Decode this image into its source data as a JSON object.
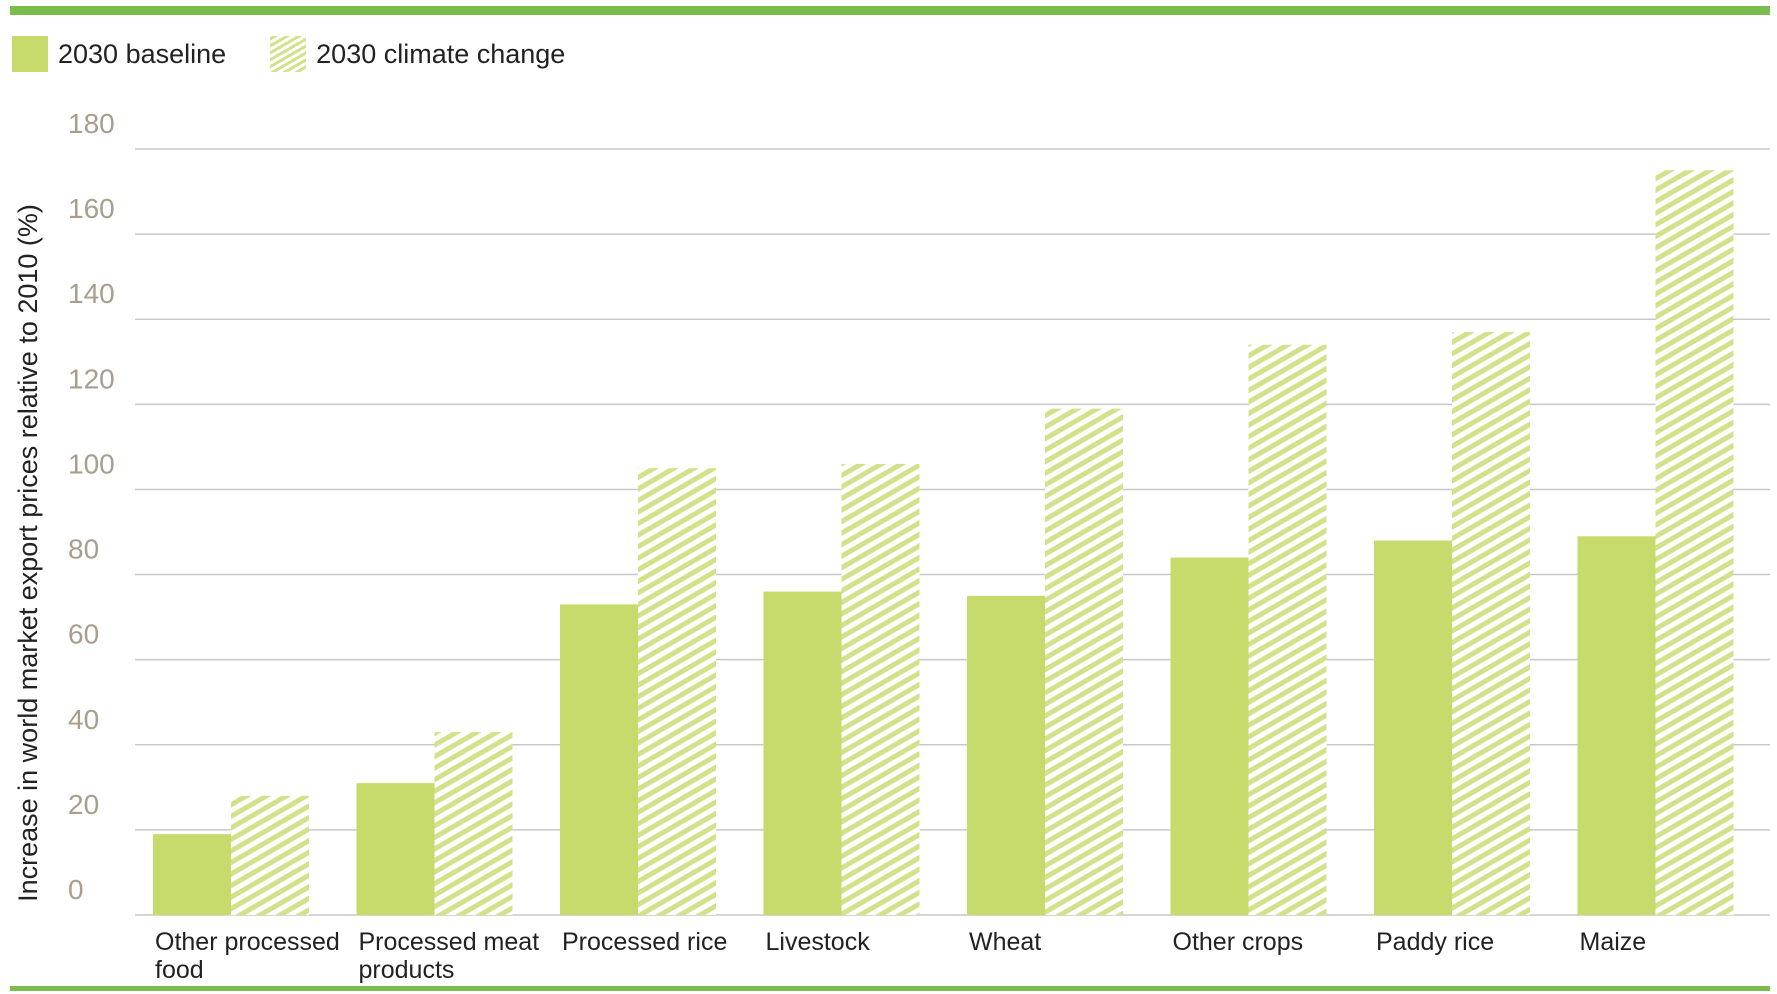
{
  "legend": {
    "baseline_label": "2030 baseline",
    "climate_label": "2030 climate change"
  },
  "colors": {
    "baseline": "#c6db6c",
    "climate_stripe": "#d3e28a",
    "gridline": "#c8c8c8",
    "rule": "#79bd4e",
    "tick_text": "#a99d8d"
  },
  "chart_data": {
    "type": "bar",
    "title": "",
    "xlabel": "",
    "ylabel": "Increase in world market export prices relative to 2010 (%)",
    "ylim": [
      0,
      180
    ],
    "yticks": [
      "0",
      "20",
      "40",
      "60",
      "80",
      "100",
      "120",
      "140",
      "160",
      "180"
    ],
    "grid": true,
    "legend_position": "top-left",
    "categories": [
      [
        "Other processed",
        "food"
      ],
      [
        "Processed meat",
        "products"
      ],
      [
        "Processed rice"
      ],
      [
        "Livestock"
      ],
      [
        "Wheat"
      ],
      [
        "Other crops"
      ],
      [
        "Paddy rice"
      ],
      [
        "Maize"
      ]
    ],
    "series": [
      {
        "name": "2030 baseline",
        "values": [
          19,
          31,
          73,
          76,
          75,
          84,
          88,
          89
        ]
      },
      {
        "name": "2030 climate change",
        "values": [
          28,
          43,
          105,
          106,
          119,
          134,
          137,
          175
        ]
      }
    ]
  }
}
